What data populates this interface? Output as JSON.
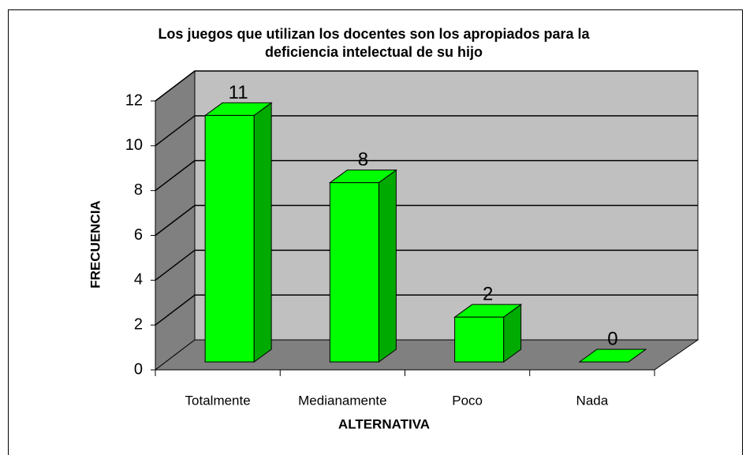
{
  "chart_data": {
    "type": "bar3d",
    "title": [
      "Los juegos que utilizan los docentes son los apropiados para la",
      "deficiencia intelectual de su hijo"
    ],
    "x_label": "ALTERNATIVA",
    "y_label": "FRECUENCIA",
    "categories": [
      "Totalmente",
      "Medianamente",
      "Poco",
      "Nada"
    ],
    "values": [
      11,
      8,
      2,
      0
    ],
    "color": "#00ff00",
    "ylim": [
      0,
      12
    ],
    "yticks": [
      0,
      2,
      4,
      6,
      8,
      10,
      12
    ],
    "grid": true
  }
}
